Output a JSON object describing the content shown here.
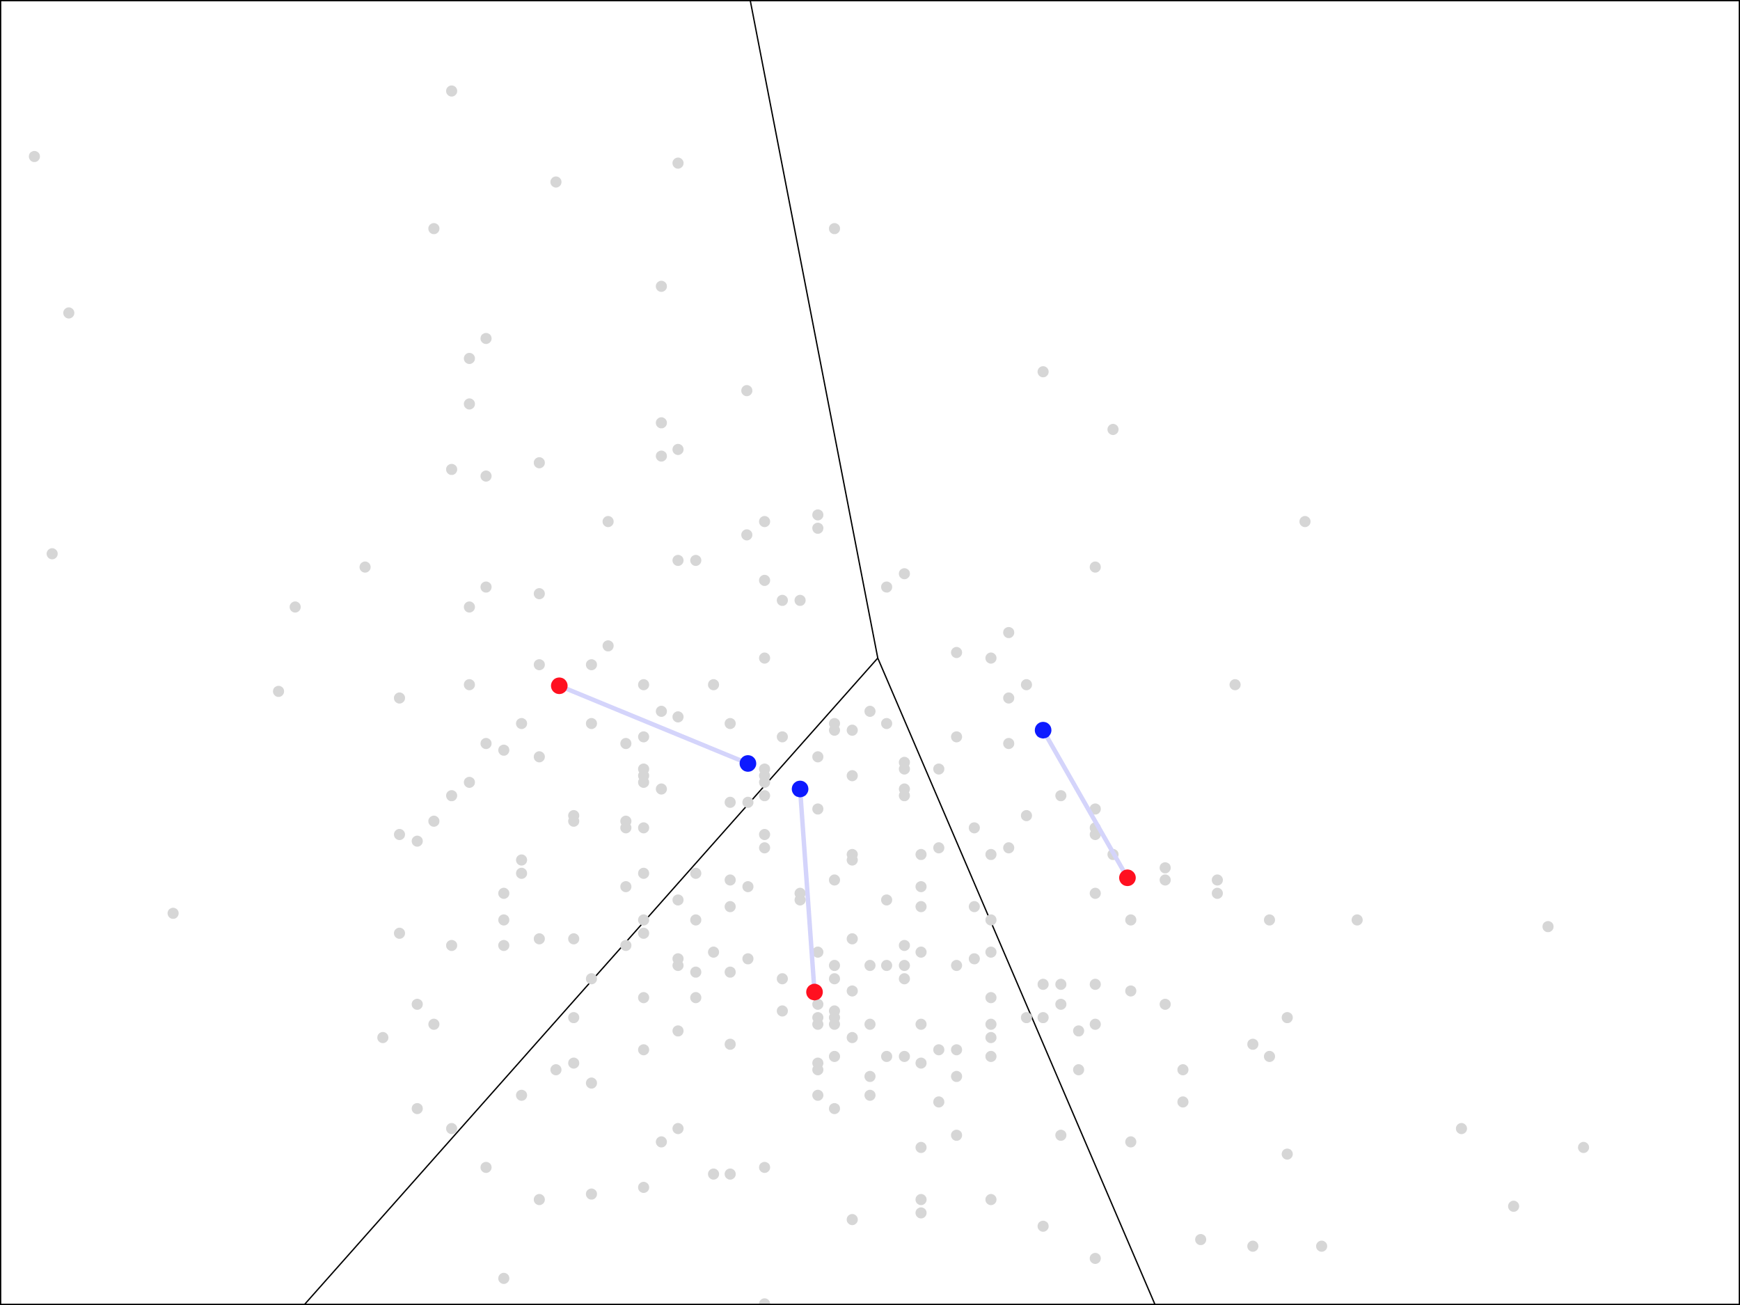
{
  "chart_data": {
    "type": "scatter",
    "title": "",
    "xlim": [
      0,
      1568
    ],
    "ylim": [
      0,
      1176
    ],
    "y_direction": "down",
    "axes_visible": false,
    "grid": false,
    "legend": "none",
    "colors": {
      "points": "#d6d6d6",
      "previous_centroids": "#ff1020",
      "current_centroids": "#0d1aff",
      "movement_lines": "#d4d4fb",
      "boundaries": "#000000",
      "frame": "#000000"
    },
    "points": [
      [
        407,
        82
      ],
      [
        31,
        141
      ],
      [
        501,
        164
      ],
      [
        611,
        147
      ],
      [
        391,
        206
      ],
      [
        752,
        206
      ],
      [
        62,
        282
      ],
      [
        596,
        258
      ],
      [
        438,
        305
      ],
      [
        423,
        323
      ],
      [
        673,
        352
      ],
      [
        940,
        335
      ],
      [
        1003,
        387
      ],
      [
        423,
        364
      ],
      [
        596,
        381
      ],
      [
        611,
        405
      ],
      [
        596,
        411
      ],
      [
        407,
        423
      ],
      [
        438,
        429
      ],
      [
        486,
        417
      ],
      [
        548,
        470
      ],
      [
        689,
        470
      ],
      [
        737,
        464
      ],
      [
        737,
        476
      ],
      [
        673,
        482
      ],
      [
        1176,
        470
      ],
      [
        47,
        499
      ],
      [
        329,
        511
      ],
      [
        611,
        505
      ],
      [
        627,
        505
      ],
      [
        689,
        523
      ],
      [
        705,
        541
      ],
      [
        721,
        541
      ],
      [
        799,
        529
      ],
      [
        815,
        517
      ],
      [
        987,
        511
      ],
      [
        266,
        547
      ],
      [
        423,
        547
      ],
      [
        438,
        529
      ],
      [
        486,
        535
      ],
      [
        548,
        582
      ],
      [
        486,
        599
      ],
      [
        533,
        599
      ],
      [
        689,
        593
      ],
      [
        862,
        588
      ],
      [
        893,
        593
      ],
      [
        909,
        570
      ],
      [
        251,
        623
      ],
      [
        360,
        629
      ],
      [
        423,
        617
      ],
      [
        580,
        617
      ],
      [
        643,
        617
      ],
      [
        925,
        617
      ],
      [
        1113,
        617
      ],
      [
        909,
        629
      ],
      [
        470,
        652
      ],
      [
        533,
        652
      ],
      [
        596,
        641
      ],
      [
        611,
        646
      ],
      [
        658,
        652
      ],
      [
        784,
        641
      ],
      [
        752,
        658
      ],
      [
        768,
        658
      ],
      [
        752,
        652
      ],
      [
        799,
        652
      ],
      [
        862,
        664
      ],
      [
        909,
        670
      ],
      [
        438,
        670
      ],
      [
        454,
        676
      ],
      [
        486,
        682
      ],
      [
        564,
        670
      ],
      [
        580,
        664
      ],
      [
        705,
        664
      ],
      [
        737,
        682
      ],
      [
        580,
        693
      ],
      [
        580,
        699
      ],
      [
        580,
        705
      ],
      [
        596,
        711
      ],
      [
        689,
        693
      ],
      [
        689,
        699
      ],
      [
        689,
        705
      ],
      [
        689,
        717
      ],
      [
        658,
        723
      ],
      [
        674,
        723
      ],
      [
        815,
        687
      ],
      [
        815,
        693
      ],
      [
        846,
        693
      ],
      [
        768,
        699
      ],
      [
        815,
        711
      ],
      [
        815,
        717
      ],
      [
        956,
        717
      ],
      [
        423,
        705
      ],
      [
        407,
        717
      ],
      [
        391,
        740
      ],
      [
        376,
        758
      ],
      [
        360,
        752
      ],
      [
        517,
        735
      ],
      [
        517,
        740
      ],
      [
        564,
        740
      ],
      [
        564,
        746
      ],
      [
        580,
        746
      ],
      [
        689,
        752
      ],
      [
        689,
        764
      ],
      [
        737,
        729
      ],
      [
        925,
        735
      ],
      [
        987,
        729
      ],
      [
        878,
        746
      ],
      [
        987,
        746
      ],
      [
        987,
        752
      ],
      [
        909,
        764
      ],
      [
        1003,
        770
      ],
      [
        470,
        775
      ],
      [
        470,
        787
      ],
      [
        580,
        787
      ],
      [
        768,
        770
      ],
      [
        768,
        775
      ],
      [
        830,
        770
      ],
      [
        846,
        764
      ],
      [
        893,
        770
      ],
      [
        156,
        823
      ],
      [
        454,
        805
      ],
      [
        564,
        799
      ],
      [
        611,
        811
      ],
      [
        627,
        787
      ],
      [
        658,
        793
      ],
      [
        674,
        799
      ],
      [
        721,
        805
      ],
      [
        721,
        811
      ],
      [
        752,
        793
      ],
      [
        799,
        811
      ],
      [
        830,
        799
      ],
      [
        830,
        817
      ],
      [
        878,
        817
      ],
      [
        893,
        829
      ],
      [
        987,
        805
      ],
      [
        1019,
        829
      ],
      [
        1050,
        782
      ],
      [
        1050,
        793
      ],
      [
        1097,
        793
      ],
      [
        1097,
        805
      ],
      [
        1144,
        829
      ],
      [
        1223,
        829
      ],
      [
        1395,
        835
      ],
      [
        360,
        841
      ],
      [
        407,
        852
      ],
      [
        454,
        829
      ],
      [
        454,
        852
      ],
      [
        486,
        846
      ],
      [
        517,
        846
      ],
      [
        564,
        852
      ],
      [
        580,
        829
      ],
      [
        580,
        841
      ],
      [
        627,
        829
      ],
      [
        658,
        817
      ],
      [
        737,
        858
      ],
      [
        768,
        846
      ],
      [
        815,
        852
      ],
      [
        830,
        858
      ],
      [
        862,
        870
      ],
      [
        815,
        870
      ],
      [
        815,
        882
      ],
      [
        784,
        870
      ],
      [
        752,
        870
      ],
      [
        752,
        882
      ],
      [
        611,
        864
      ],
      [
        611,
        870
      ],
      [
        643,
        858
      ],
      [
        627,
        876
      ],
      [
        658,
        876
      ],
      [
        674,
        864
      ],
      [
        705,
        882
      ],
      [
        705,
        911
      ],
      [
        768,
        893
      ],
      [
        737,
        905
      ],
      [
        737,
        917
      ],
      [
        752,
        911
      ],
      [
        752,
        917
      ],
      [
        799,
        870
      ],
      [
        878,
        864
      ],
      [
        893,
        858
      ],
      [
        940,
        887
      ],
      [
        956,
        887
      ],
      [
        987,
        887
      ],
      [
        1019,
        893
      ],
      [
        956,
        905
      ],
      [
        925,
        917
      ],
      [
        940,
        917
      ],
      [
        893,
        899
      ],
      [
        893,
        923
      ],
      [
        893,
        935
      ],
      [
        893,
        952
      ],
      [
        830,
        923
      ],
      [
        784,
        923
      ],
      [
        752,
        923
      ],
      [
        737,
        923
      ],
      [
        972,
        929
      ],
      [
        987,
        923
      ],
      [
        1050,
        905
      ],
      [
        1160,
        917
      ],
      [
        533,
        882
      ],
      [
        517,
        917
      ],
      [
        580,
        899
      ],
      [
        611,
        929
      ],
      [
        627,
        899
      ],
      [
        658,
        941
      ],
      [
        376,
        905
      ],
      [
        391,
        923
      ],
      [
        345,
        935
      ],
      [
        580,
        946
      ],
      [
        517,
        958
      ],
      [
        501,
        964
      ],
      [
        533,
        976
      ],
      [
        470,
        987
      ],
      [
        376,
        999
      ],
      [
        407,
        1017
      ],
      [
        438,
        1052
      ],
      [
        486,
        1081
      ],
      [
        533,
        1076
      ],
      [
        580,
        1070
      ],
      [
        596,
        1029
      ],
      [
        611,
        1017
      ],
      [
        643,
        1058
      ],
      [
        658,
        1058
      ],
      [
        689,
        1052
      ],
      [
        737,
        958
      ],
      [
        737,
        964
      ],
      [
        752,
        952
      ],
      [
        737,
        987
      ],
      [
        752,
        999
      ],
      [
        768,
        935
      ],
      [
        784,
        970
      ],
      [
        784,
        987
      ],
      [
        799,
        952
      ],
      [
        815,
        952
      ],
      [
        830,
        958
      ],
      [
        846,
        946
      ],
      [
        862,
        946
      ],
      [
        862,
        970
      ],
      [
        846,
        993
      ],
      [
        862,
        1023
      ],
      [
        830,
        1034
      ],
      [
        830,
        1081
      ],
      [
        830,
        1093
      ],
      [
        893,
        1081
      ],
      [
        768,
        1099
      ],
      [
        940,
        1105
      ],
      [
        987,
        1134
      ],
      [
        972,
        964
      ],
      [
        956,
        1023
      ],
      [
        1019,
        1029
      ],
      [
        1066,
        964
      ],
      [
        1066,
        993
      ],
      [
        1129,
        941
      ],
      [
        1144,
        952
      ],
      [
        1160,
        1040
      ],
      [
        1082,
        1117
      ],
      [
        1129,
        1123
      ],
      [
        1191,
        1123
      ],
      [
        1317,
        1017
      ],
      [
        1364,
        1087
      ],
      [
        1427,
        1034
      ],
      [
        454,
        1152
      ],
      [
        689,
        1175
      ]
    ],
    "centroids": [
      {
        "previous": [
          504,
          618
        ],
        "current": [
          674,
          688
        ]
      },
      {
        "previous": [
          734,
          894
        ],
        "current": [
          721,
          711
        ]
      },
      {
        "previous": [
          1016,
          791
        ],
        "current": [
          940,
          658
        ]
      }
    ],
    "boundaries": [
      [
        [
          676,
          0
        ],
        [
          791,
          593
        ]
      ],
      [
        [
          791,
          593
        ],
        [
          274,
          1176
        ]
      ],
      [
        [
          791,
          593
        ],
        [
          1041,
          1176
        ]
      ]
    ]
  }
}
